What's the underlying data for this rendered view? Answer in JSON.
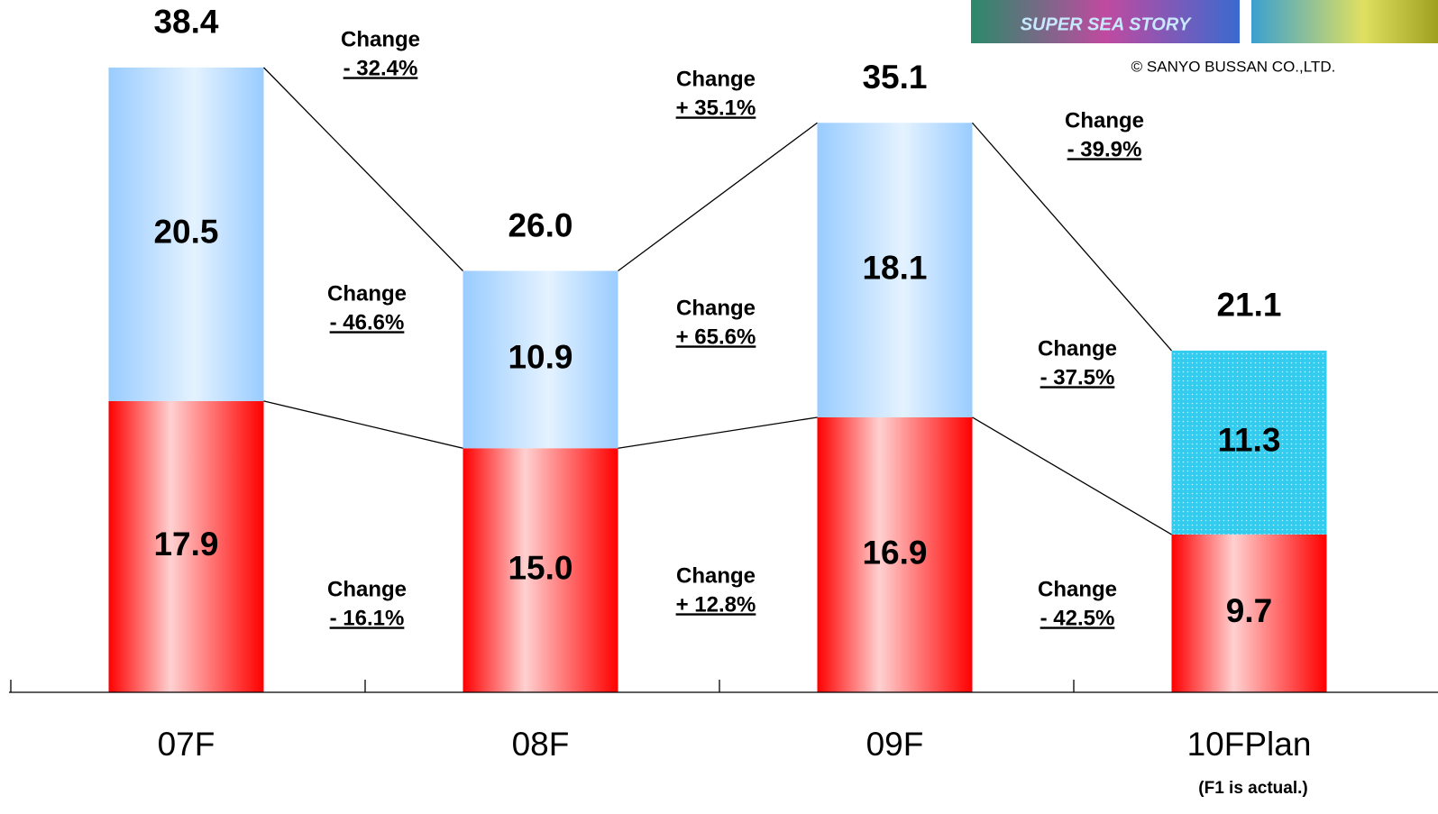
{
  "chart_data": {
    "type": "stacked-bar",
    "categories": [
      "07F",
      "08F",
      "09F",
      "10FPlan"
    ],
    "series": [
      {
        "color": "#ff0000",
        "values": [
          17.9,
          15.0,
          16.9,
          9.7
        ],
        "value_labels": [
          "17.9",
          "15.0",
          "16.9",
          "9.7"
        ]
      },
      {
        "color": "#99ccff",
        "highlight_color": "#33ccee",
        "values": [
          20.5,
          10.9,
          18.1,
          11.3
        ],
        "value_labels": [
          "20.5",
          "10.9",
          "18.1",
          "11.3"
        ]
      }
    ],
    "totals": [
      38.4,
      26.0,
      35.1,
      21.1
    ],
    "total_labels": [
      "38.4",
      "26.0",
      "35.1",
      "21.1"
    ],
    "change_word": "Change",
    "total_changes": [
      "- 32.4%",
      "+ 35.1%",
      "- 39.9%"
    ],
    "top_changes": [
      "- 46.6%",
      "+ 65.6%",
      "- 37.5%"
    ],
    "bottom_changes": [
      "- 16.1%",
      "+ 12.8%",
      "- 42.5%"
    ],
    "annotation": "(F1 is actual.)",
    "ylim": [
      0,
      40
    ]
  },
  "header": {
    "image_caption": "SUPER SEA STORY",
    "copyright": "© SANYO BUSSAN CO.,LTD."
  }
}
